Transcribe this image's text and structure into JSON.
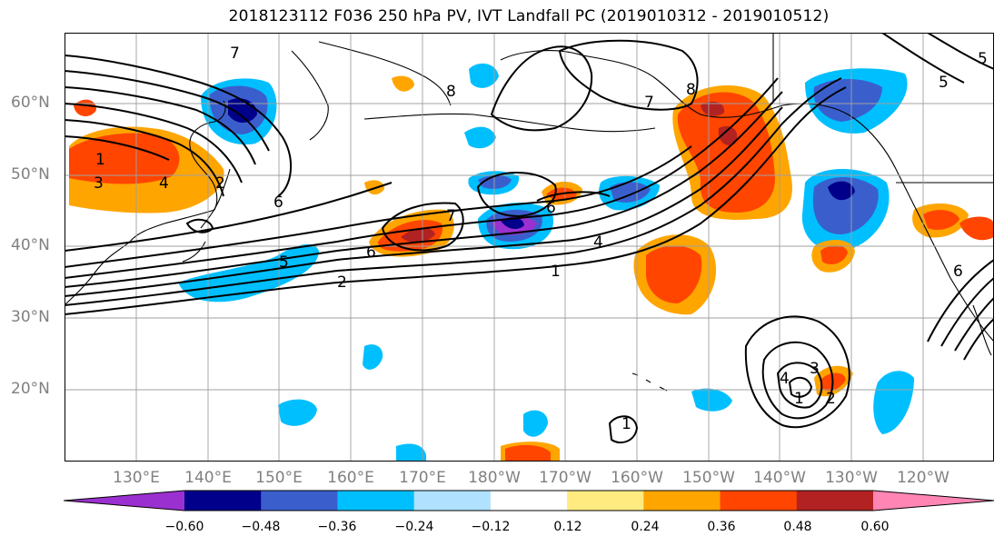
{
  "title": "2018123112 F036 250 hPa PV, IVT Landfall PC (2019010312 - 2019010512)",
  "lat_ticks": [
    "60°N",
    "50°N",
    "40°N",
    "30°N",
    "20°N"
  ],
  "lon_ticks": [
    "130°E",
    "140°E",
    "150°E",
    "160°E",
    "170°E",
    "180°W",
    "170°W",
    "160°W",
    "150°W",
    "140°W",
    "130°W",
    "120°W"
  ],
  "colorbar": {
    "tick_labels": [
      "−0.60",
      "−0.48",
      "−0.36",
      "−0.24",
      "−0.12",
      "0.12",
      "0.24",
      "0.36",
      "0.48",
      "0.60"
    ],
    "colors": [
      "#9b30d0",
      "#00008b",
      "#3a5fcd",
      "#00bfff",
      "#b0e2ff",
      "#ffffff",
      "#ffeb80",
      "#ffa500",
      "#ff4500",
      "#b22222",
      "#ff85b5"
    ]
  },
  "contour_labels": [
    "7",
    "1",
    "3",
    "4",
    "2",
    "6",
    "5",
    "2",
    "6",
    "7",
    "8",
    "7",
    "8",
    "6",
    "4",
    "1",
    "1",
    "4",
    "3",
    "2",
    "1",
    "5",
    "6",
    "5"
  ],
  "colors": {
    "land_outline": "#000000",
    "grid": "#a0a0a0",
    "contour": "#000000"
  }
}
